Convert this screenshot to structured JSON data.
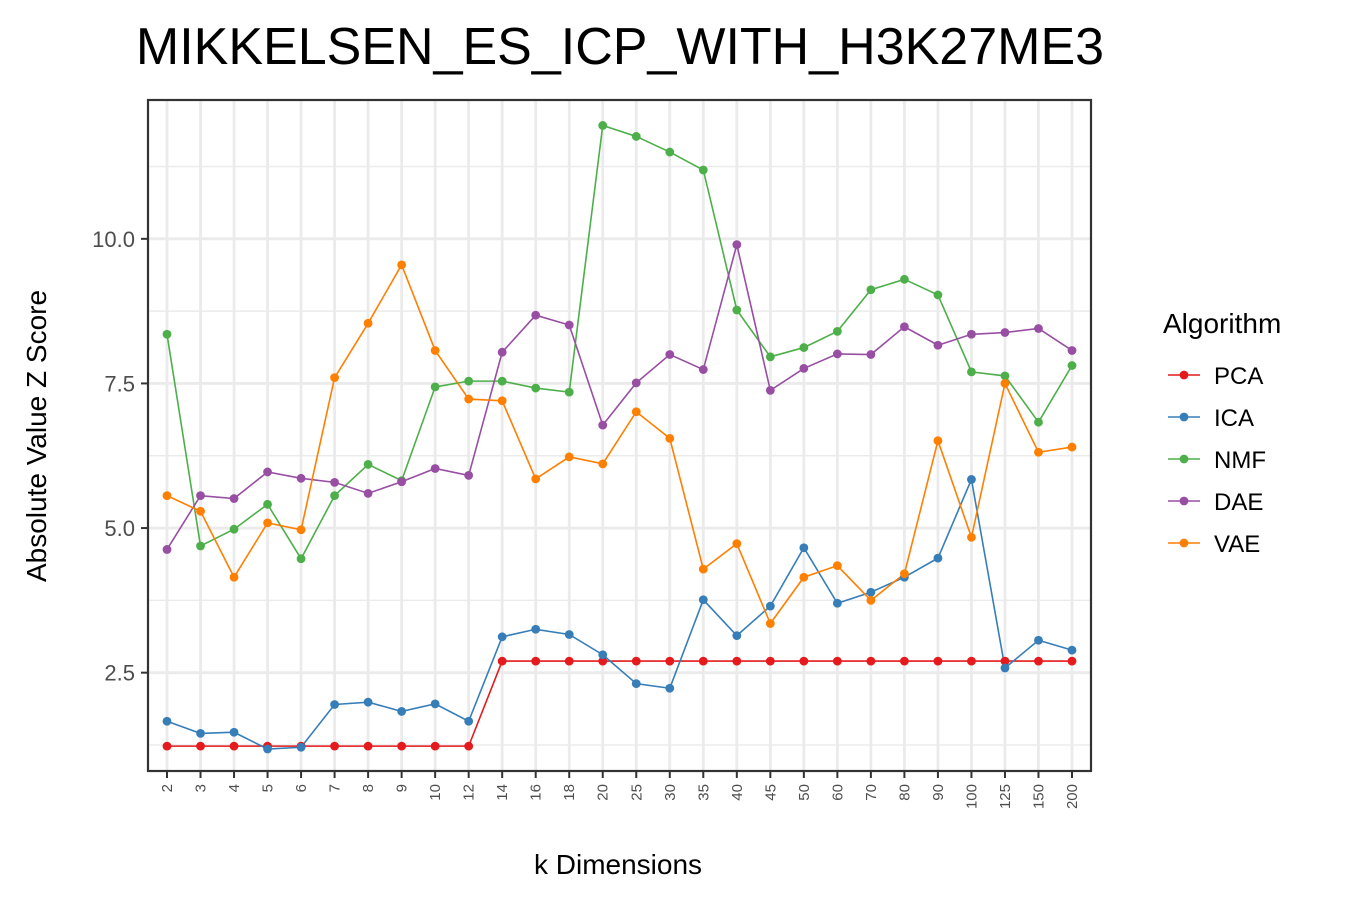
{
  "chart_data": {
    "type": "line",
    "title": "MIKKELSEN_ES_ICP_WITH_H3K27ME3",
    "xlabel": "k Dimensions",
    "ylabel": "Absolute Value Z Score",
    "categories": [
      "2",
      "3",
      "4",
      "5",
      "6",
      "7",
      "8",
      "9",
      "10",
      "12",
      "14",
      "16",
      "18",
      "20",
      "25",
      "30",
      "35",
      "40",
      "45",
      "50",
      "60",
      "70",
      "80",
      "90",
      "100",
      "125",
      "150",
      "200"
    ],
    "yticks": [
      "2.5",
      "5.0",
      "7.5",
      "10.0"
    ],
    "ylim": [
      0.8,
      12.4
    ],
    "grid": true,
    "legend_title": "Algorithm",
    "legend_position": "right",
    "series": [
      {
        "name": "PCA",
        "color": "#E41A1C",
        "values": [
          1.23,
          1.23,
          1.23,
          1.23,
          1.23,
          1.23,
          1.23,
          1.23,
          1.23,
          1.23,
          2.7,
          2.7,
          2.7,
          2.7,
          2.7,
          2.7,
          2.7,
          2.7,
          2.7,
          2.7,
          2.7,
          2.7,
          2.7,
          2.7,
          2.7,
          2.7,
          2.7,
          2.7
        ]
      },
      {
        "name": "ICA",
        "color": "#377EB8",
        "values": [
          1.66,
          1.45,
          1.47,
          1.18,
          1.21,
          1.95,
          1.99,
          1.83,
          1.96,
          1.66,
          3.12,
          3.25,
          3.16,
          2.81,
          2.31,
          2.23,
          3.76,
          3.14,
          3.65,
          4.66,
          3.7,
          3.89,
          4.15,
          4.48,
          5.84,
          2.58,
          3.06,
          2.89
        ]
      },
      {
        "name": "NMF",
        "color": "#4DAF4A",
        "values": [
          8.35,
          4.69,
          4.98,
          5.41,
          4.47,
          5.56,
          6.1,
          5.82,
          7.44,
          7.54,
          7.54,
          7.42,
          7.35,
          11.96,
          11.77,
          11.5,
          11.19,
          8.77,
          7.96,
          8.12,
          8.4,
          9.12,
          9.3,
          9.03,
          7.7,
          7.63,
          6.83,
          7.81
        ]
      },
      {
        "name": "DAE",
        "color": "#984EA3",
        "values": [
          4.63,
          5.56,
          5.51,
          5.97,
          5.86,
          5.79,
          5.6,
          5.8,
          6.03,
          5.91,
          8.04,
          8.68,
          8.51,
          6.78,
          7.51,
          8.0,
          7.74,
          9.9,
          7.38,
          7.76,
          8.01,
          8.0,
          8.48,
          8.16,
          8.35,
          8.38,
          8.45,
          8.07
        ]
      },
      {
        "name": "VAE",
        "color": "#FF7F00",
        "values": [
          5.56,
          5.29,
          4.15,
          5.09,
          4.97,
          7.6,
          8.54,
          9.55,
          8.07,
          7.23,
          7.2,
          5.85,
          6.23,
          6.11,
          7.01,
          6.55,
          4.29,
          4.73,
          3.35,
          4.15,
          4.35,
          3.75,
          4.21,
          6.51,
          4.84,
          7.5,
          6.31,
          6.4
        ]
      }
    ]
  }
}
